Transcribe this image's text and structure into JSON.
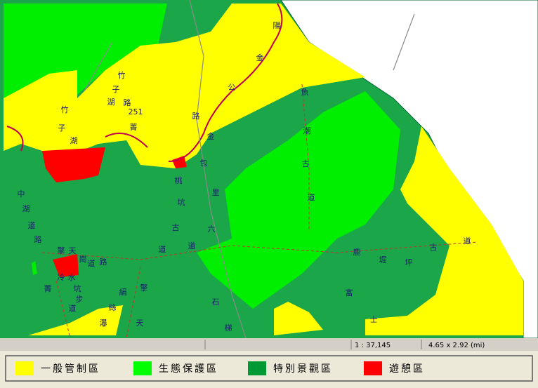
{
  "map_labels": [
    "陽",
    "金",
    "公",
    "竹",
    "子",
    "湖",
    "路",
    "251",
    "竹",
    "子",
    "湖",
    "菁",
    "路",
    "金",
    "包",
    "里",
    "桃",
    "坑",
    "古",
    "道",
    "六",
    "道",
    "中",
    "湖",
    "道",
    "路",
    "擎",
    "天",
    "崗",
    "道",
    "路",
    "冷",
    "水",
    "坑",
    "步",
    "道",
    "絹",
    "絲",
    "瀑",
    "擎",
    "天",
    "石",
    "梯",
    "魚",
    "潮",
    "古",
    "道",
    "鹿",
    "堀",
    "坪",
    "古",
    "道",
    "富",
    "士",
    "菁"
  ],
  "status_bar": {
    "scale": "1 : 37,145",
    "extent": "4.65 x 2.92 (mi)"
  },
  "legend": [
    {
      "label": "一般管制區",
      "color": "#ffff00"
    },
    {
      "label": "生態保護區",
      "color": "#00ff00"
    },
    {
      "label": "特別景觀區",
      "color": "#009933"
    },
    {
      "label": "遊憩區",
      "color": "#ff0000"
    }
  ]
}
